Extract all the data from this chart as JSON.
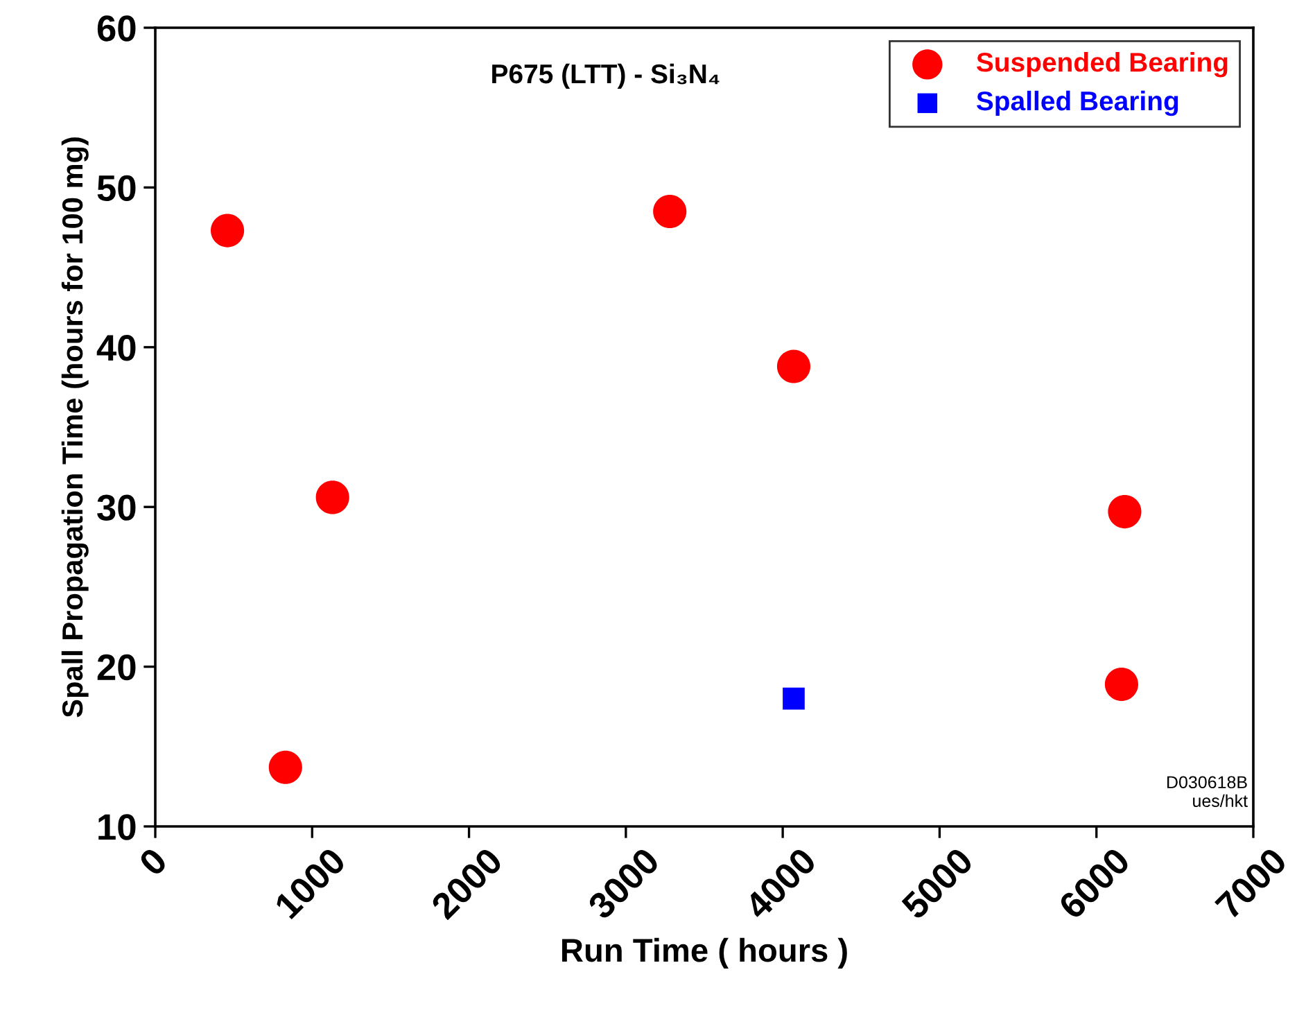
{
  "chart_data": {
    "type": "scatter",
    "title": "P675 (LTT) - Si₃N₄",
    "xlabel": "Run Time ( hours )",
    "ylabel": "Spall Propagation Time (hours for 100 mg)",
    "series": [
      {
        "name": "Suspended Bearing",
        "color": "#ff0000",
        "marker": "circle",
        "x": [
          460,
          830,
          1130,
          3280,
          4070,
          6180,
          6160
        ],
        "values": [
          47.3,
          13.7,
          30.6,
          48.5,
          38.8,
          29.7,
          18.9
        ]
      },
      {
        "name": "Spalled Bearing",
        "color": "#0000ff",
        "marker": "square",
        "x": [
          4070
        ],
        "values": [
          18.0
        ]
      }
    ],
    "xlim": [
      0,
      7000
    ],
    "xticks": [
      0,
      1000,
      2000,
      3000,
      4000,
      5000,
      6000,
      7000
    ],
    "ylim": [
      10,
      60
    ],
    "yticks": [
      10,
      20,
      30,
      40,
      50,
      60
    ],
    "grid": false,
    "legend": "top right",
    "annotations": [
      "D030618B\nues/hkt"
    ]
  }
}
